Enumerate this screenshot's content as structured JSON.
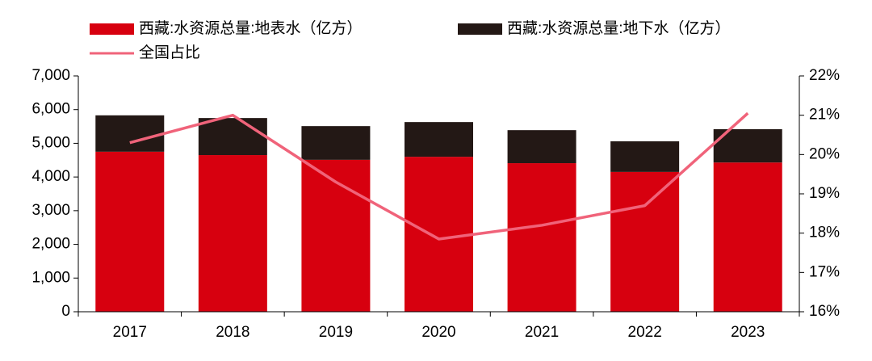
{
  "chart_data": {
    "type": "bar",
    "categories": [
      "2017",
      "2018",
      "2019",
      "2020",
      "2021",
      "2022",
      "2023"
    ],
    "series": [
      {
        "name": "西藏:水资源总量:地表水（亿方）",
        "color": "#d7000f",
        "type": "bar",
        "values": [
          4750,
          4650,
          4510,
          4600,
          4410,
          4150,
          4430
        ]
      },
      {
        "name": "西藏:水资源总量:地下水（亿方）",
        "color": "#231815",
        "type": "bar",
        "values": [
          1080,
          1100,
          1000,
          1030,
          980,
          910,
          990
        ]
      },
      {
        "name": "全国占比",
        "color": "#f0637a",
        "type": "line",
        "axis": "y2",
        "values": [
          20.3,
          21.0,
          19.3,
          17.85,
          18.2,
          18.7,
          21.05
        ]
      }
    ],
    "stacked": true,
    "ylim": [
      0,
      7000
    ],
    "yticks": [
      0,
      {
        "value": 1000,
        "label": "1,000"
      },
      {
        "value": 2000,
        "label": "2,000"
      },
      {
        "value": 3000,
        "label": "3,000"
      },
      {
        "value": 4000,
        "label": "4,000"
      },
      {
        "value": 5000,
        "label": "5,000"
      },
      {
        "value": 6000,
        "label": "6,000"
      },
      {
        "value": 7000,
        "label": "7,000"
      }
    ],
    "y2lim": [
      16,
      22
    ],
    "y2ticks": [
      {
        "value": 16,
        "label": "16%"
      },
      {
        "value": 17,
        "label": "17%"
      },
      {
        "value": 18,
        "label": "18%"
      },
      {
        "value": 19,
        "label": "19%"
      },
      {
        "value": 20,
        "label": "20%"
      },
      {
        "value": 21,
        "label": "21%"
      },
      {
        "value": 22,
        "label": "22%"
      }
    ],
    "legend": "top-left"
  }
}
